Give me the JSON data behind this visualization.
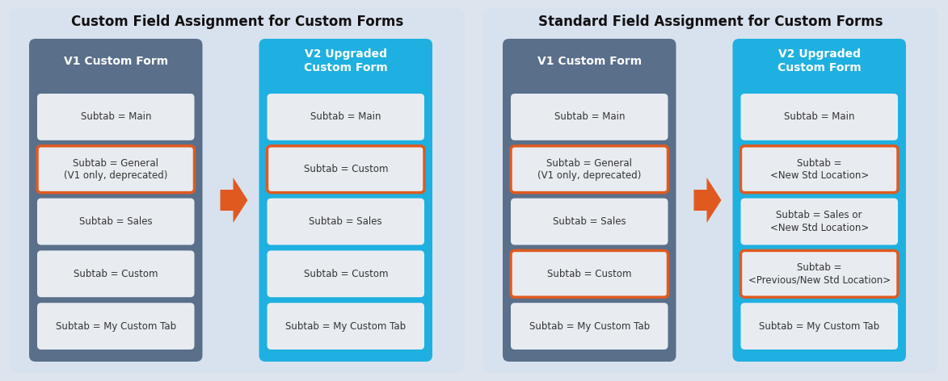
{
  "title_left": "Custom Field Assignment for Custom Forms",
  "title_right": "Standard Field Assignment for Custom Forms",
  "bg_color": "#dde4ed",
  "panel_left_v1_color": "#5a6f8a",
  "panel_left_v2_color": "#1eb0e0",
  "panel_right_v1_color": "#5a6f8a",
  "panel_right_v2_color": "#1eb0e0",
  "box_fill": "#e8ecf1",
  "box_text_color": "#333333",
  "header_text_color": "#ffffff",
  "orange_border": "#e05a20",
  "arrow_color": "#e05a20",
  "left_diagram": {
    "v1_header": "V1 Custom Form",
    "v2_header": "V2 Upgraded\nCustom Form",
    "v1_boxes": [
      {
        "text": "Subtab = Main",
        "orange": false
      },
      {
        "text": "Subtab = General\n(V1 only, deprecated)",
        "orange": true
      },
      {
        "text": "Subtab = Sales",
        "orange": false
      },
      {
        "text": "Subtab = Custom",
        "orange": false
      },
      {
        "text": "Subtab = My Custom Tab",
        "orange": false
      }
    ],
    "v2_boxes": [
      {
        "text": "Subtab = Main",
        "orange": false
      },
      {
        "text": "Subtab = Custom",
        "orange": true
      },
      {
        "text": "Subtab = Sales",
        "orange": false
      },
      {
        "text": "Subtab = Custom",
        "orange": false
      },
      {
        "text": "Subtab = My Custom Tab",
        "orange": false
      }
    ]
  },
  "right_diagram": {
    "v1_header": "V1 Custom Form",
    "v2_header": "V2 Upgraded\nCustom Form",
    "v1_boxes": [
      {
        "text": "Subtab = Main",
        "orange": false
      },
      {
        "text": "Subtab = General\n(V1 only, deprecated)",
        "orange": true
      },
      {
        "text": "Subtab = Sales",
        "orange": false
      },
      {
        "text": "Subtab = Custom",
        "orange": true
      },
      {
        "text": "Subtab = My Custom Tab",
        "orange": false
      }
    ],
    "v2_boxes": [
      {
        "text": "Subtab = Main",
        "orange": false
      },
      {
        "text": "Subtab =\n<New Std Location>",
        "orange": true
      },
      {
        "text": "Subtab = Sales or\n<New Std Location>",
        "orange": false
      },
      {
        "text": "Subtab =\n<Previous/New Std Location>",
        "orange": true
      },
      {
        "text": "Subtab = My Custom Tab",
        "orange": false
      }
    ]
  }
}
